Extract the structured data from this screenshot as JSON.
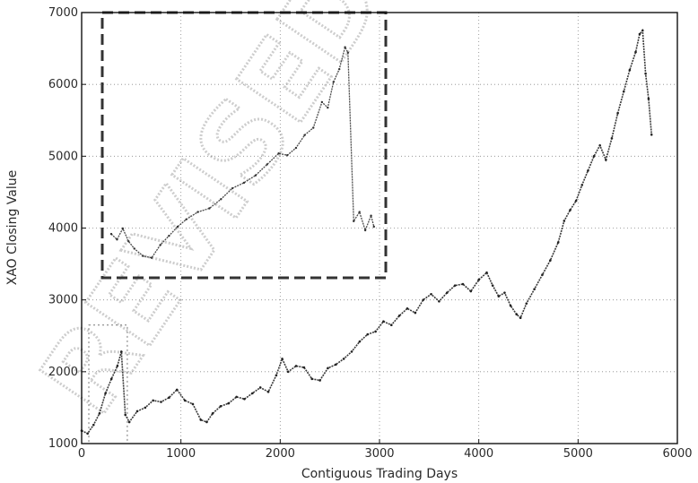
{
  "chart_data": {
    "type": "line",
    "title": "",
    "xlabel": "Contiguous Trading Days",
    "ylabel": "XAO Closing Value",
    "xlim": [
      0,
      6000
    ],
    "ylim": [
      1000,
      7000
    ],
    "xticks": [
      "0",
      "1000",
      "2000",
      "3000",
      "4000",
      "5000",
      "6000"
    ],
    "yticks": [
      "1000",
      "2000",
      "3000",
      "4000",
      "5000",
      "6000",
      "7000"
    ],
    "grid": true,
    "series": [
      {
        "values": [
          [
            0,
            1180
          ],
          [
            60,
            1140
          ],
          [
            120,
            1260
          ],
          [
            180,
            1420
          ],
          [
            240,
            1700
          ],
          [
            300,
            1900
          ],
          [
            360,
            2080
          ],
          [
            400,
            2280
          ],
          [
            440,
            1400
          ],
          [
            480,
            1300
          ],
          [
            560,
            1450
          ],
          [
            640,
            1500
          ],
          [
            720,
            1600
          ],
          [
            800,
            1580
          ],
          [
            880,
            1640
          ],
          [
            960,
            1750
          ],
          [
            1040,
            1600
          ],
          [
            1120,
            1550
          ],
          [
            1200,
            1330
          ],
          [
            1260,
            1300
          ],
          [
            1320,
            1420
          ],
          [
            1400,
            1520
          ],
          [
            1480,
            1560
          ],
          [
            1560,
            1650
          ],
          [
            1640,
            1620
          ],
          [
            1720,
            1700
          ],
          [
            1800,
            1780
          ],
          [
            1880,
            1720
          ],
          [
            1960,
            1950
          ],
          [
            2020,
            2180
          ],
          [
            2080,
            2000
          ],
          [
            2160,
            2080
          ],
          [
            2240,
            2060
          ],
          [
            2320,
            1900
          ],
          [
            2400,
            1880
          ],
          [
            2480,
            2050
          ],
          [
            2560,
            2100
          ],
          [
            2640,
            2180
          ],
          [
            2720,
            2280
          ],
          [
            2800,
            2420
          ],
          [
            2880,
            2520
          ],
          [
            2960,
            2560
          ],
          [
            3040,
            2700
          ],
          [
            3120,
            2650
          ],
          [
            3200,
            2780
          ],
          [
            3280,
            2880
          ],
          [
            3360,
            2820
          ],
          [
            3440,
            3000
          ],
          [
            3520,
            3080
          ],
          [
            3600,
            2980
          ],
          [
            3680,
            3100
          ],
          [
            3760,
            3200
          ],
          [
            3840,
            3220
          ],
          [
            3920,
            3120
          ],
          [
            4000,
            3280
          ],
          [
            4080,
            3380
          ],
          [
            4140,
            3200
          ],
          [
            4200,
            3050
          ],
          [
            4260,
            3100
          ],
          [
            4320,
            2920
          ],
          [
            4380,
            2800
          ],
          [
            4420,
            2750
          ],
          [
            4480,
            2950
          ],
          [
            4560,
            3150
          ],
          [
            4640,
            3350
          ],
          [
            4720,
            3550
          ],
          [
            4800,
            3800
          ],
          [
            4860,
            4100
          ],
          [
            4920,
            4250
          ],
          [
            4980,
            4380
          ],
          [
            5040,
            4600
          ],
          [
            5100,
            4800
          ],
          [
            5160,
            5000
          ],
          [
            5220,
            5150
          ],
          [
            5280,
            4950
          ],
          [
            5340,
            5250
          ],
          [
            5400,
            5600
          ],
          [
            5460,
            5900
          ],
          [
            5520,
            6200
          ],
          [
            5580,
            6450
          ],
          [
            5620,
            6700
          ],
          [
            5650,
            6750
          ],
          [
            5680,
            6150
          ],
          [
            5710,
            5800
          ],
          [
            5740,
            5300
          ]
        ]
      }
    ],
    "inset": {
      "values": [
        [
          0,
          1180
        ],
        [
          10,
          1150
        ],
        [
          20,
          1210
        ],
        [
          30,
          1140
        ],
        [
          40,
          1100
        ],
        [
          55,
          1060
        ],
        [
          70,
          1050
        ],
        [
          85,
          1120
        ],
        [
          100,
          1170
        ],
        [
          115,
          1220
        ],
        [
          130,
          1260
        ],
        [
          150,
          1300
        ],
        [
          170,
          1320
        ],
        [
          190,
          1370
        ],
        [
          210,
          1430
        ],
        [
          230,
          1460
        ],
        [
          250,
          1500
        ],
        [
          270,
          1560
        ],
        [
          290,
          1620
        ],
        [
          305,
          1610
        ],
        [
          320,
          1650
        ],
        [
          335,
          1720
        ],
        [
          350,
          1760
        ],
        [
          365,
          1900
        ],
        [
          375,
          1870
        ],
        [
          385,
          2010
        ],
        [
          395,
          2080
        ],
        [
          405,
          2200
        ],
        [
          410,
          2170
        ],
        [
          420,
          1250
        ],
        [
          430,
          1300
        ],
        [
          440,
          1200
        ],
        [
          450,
          1280
        ],
        [
          455,
          1220
        ]
      ],
      "xlim": [
        0,
        460
      ],
      "ylim": [
        980,
        2350
      ]
    }
  },
  "watermark": "REVISED PROOF"
}
